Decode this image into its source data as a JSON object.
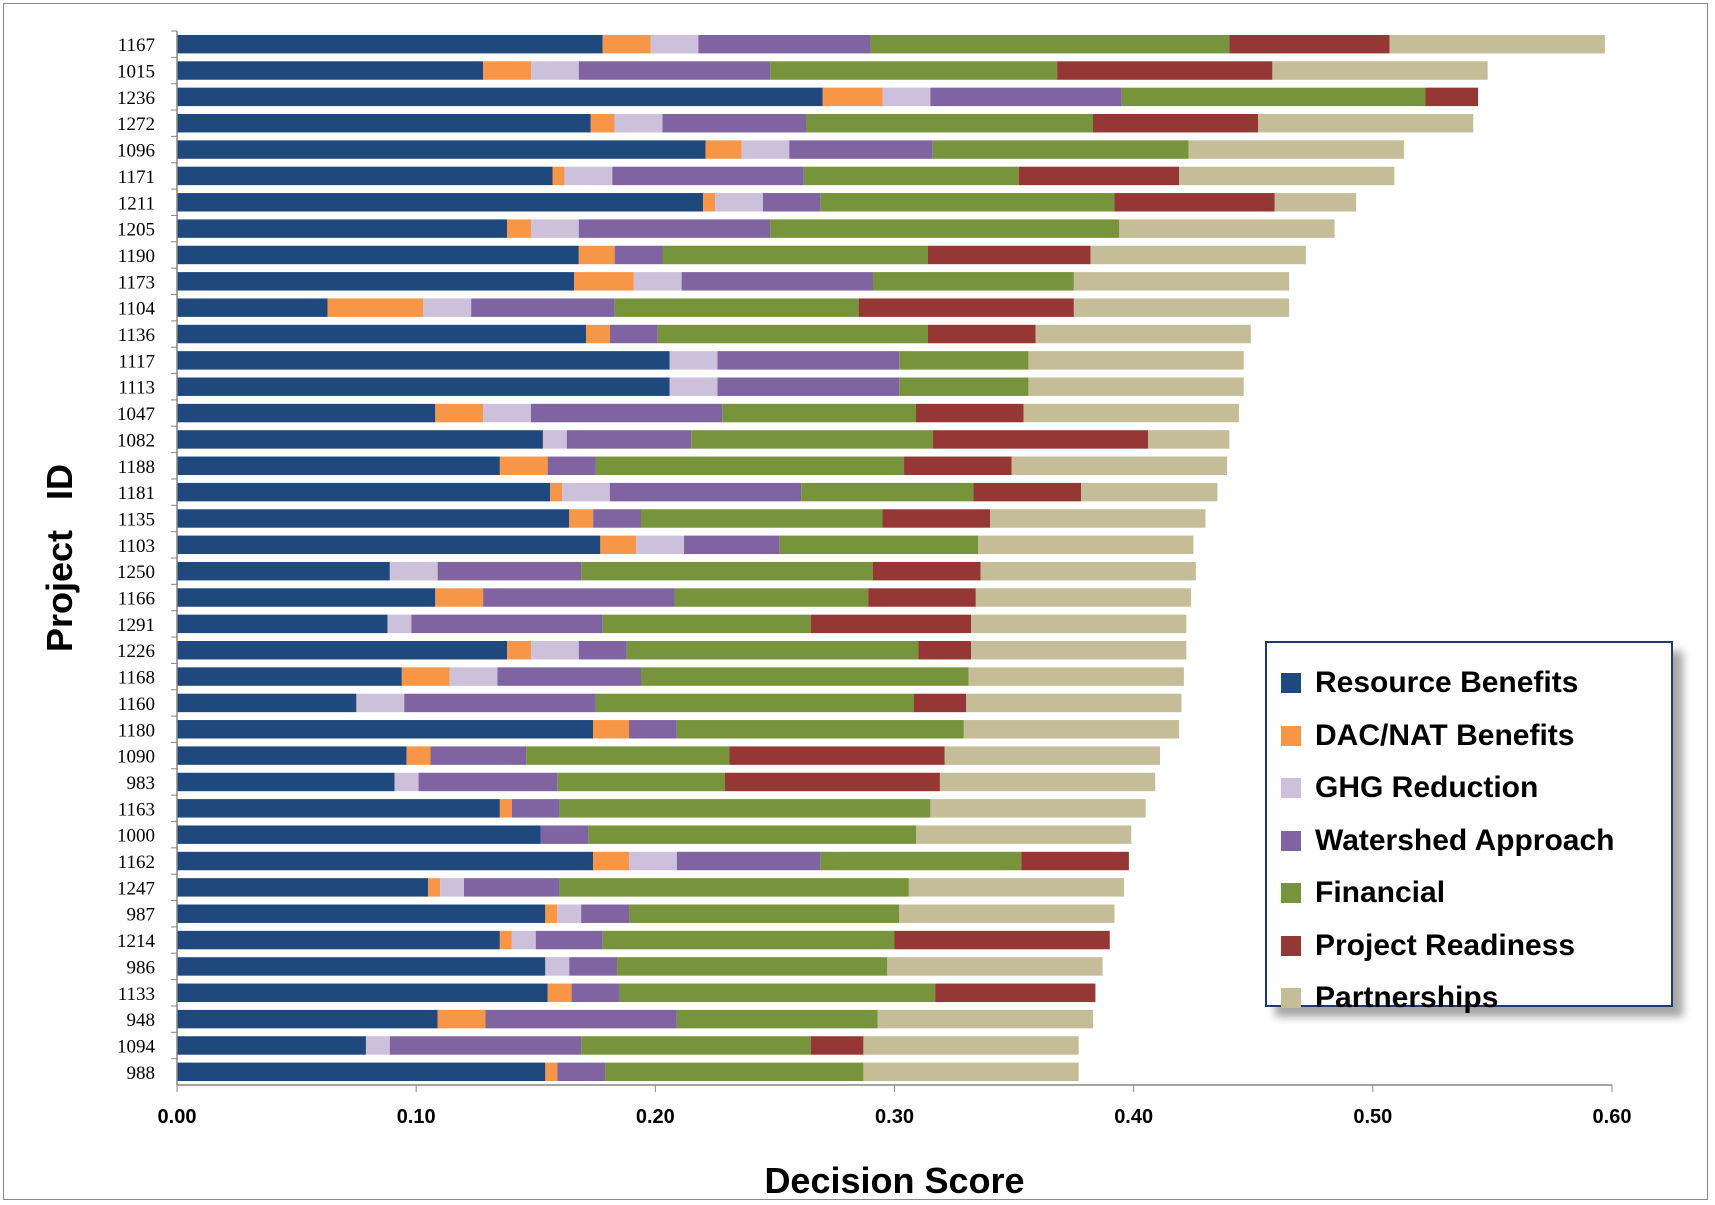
{
  "chart_data": {
    "type": "bar",
    "orientation": "horizontal",
    "stacked": true,
    "xlabel": "Decision Score",
    "ylabel": "Project   ID",
    "xlim": [
      0,
      0.6
    ],
    "xticks": [
      "0.00",
      "0.10",
      "0.20",
      "0.30",
      "0.40",
      "0.50",
      "0.60"
    ],
    "legend_position": "bottom-right",
    "grid": false,
    "categories": [
      "1167",
      "1015",
      "1236",
      "1272",
      "1096",
      "1171",
      "1211",
      "1205",
      "1190",
      "1173",
      "1104",
      "1136",
      "1117",
      "1113",
      "1047",
      "1082",
      "1188",
      "1181",
      "1135",
      "1103",
      "1250",
      "1166",
      "1291",
      "1226",
      "1168",
      "1160",
      "1180",
      "1090",
      "983",
      "1163",
      "1000",
      "1162",
      "1247",
      "987",
      "1214",
      "986",
      "1133",
      "948",
      "1094",
      "988"
    ],
    "series": [
      {
        "name": "Resource Benefits",
        "color": "#1f497d",
        "values": [
          0.178,
          0.128,
          0.27,
          0.173,
          0.221,
          0.157,
          0.22,
          0.138,
          0.168,
          0.166,
          0.063,
          0.171,
          0.206,
          0.206,
          0.108,
          0.153,
          0.135,
          0.156,
          0.164,
          0.177,
          0.089,
          0.108,
          0.088,
          0.138,
          0.094,
          0.075,
          0.174,
          0.096,
          0.091,
          0.135,
          0.152,
          0.174,
          0.105,
          0.154,
          0.135,
          0.154,
          0.155,
          0.109,
          0.079,
          0.154
        ]
      },
      {
        "name": "DAC/NAT Benefits",
        "color": "#f79646",
        "values": [
          0.02,
          0.02,
          0.025,
          0.01,
          0.015,
          0.005,
          0.005,
          0.01,
          0.015,
          0.025,
          0.04,
          0.01,
          0,
          0,
          0.02,
          0,
          0.02,
          0.005,
          0.01,
          0.015,
          0,
          0.02,
          0,
          0.01,
          0.02,
          0,
          0.015,
          0.01,
          0,
          0.005,
          0,
          0.015,
          0.005,
          0.005,
          0.005,
          0,
          0.01,
          0.02,
          0,
          0.005
        ]
      },
      {
        "name": "GHG Reduction",
        "color": "#ccc0da",
        "values": [
          0.02,
          0.02,
          0.02,
          0.02,
          0.02,
          0.02,
          0.02,
          0.02,
          0,
          0.02,
          0.02,
          0,
          0.02,
          0.02,
          0.02,
          0.01,
          0,
          0.02,
          0,
          0.02,
          0.02,
          0,
          0.01,
          0.02,
          0.02,
          0.02,
          0,
          0,
          0.01,
          0,
          0,
          0.02,
          0.01,
          0.01,
          0.01,
          0.01,
          0,
          0,
          0.01,
          0
        ]
      },
      {
        "name": "Watershed Approach",
        "color": "#8064a2",
        "values": [
          0.072,
          0.08,
          0.08,
          0.06,
          0.06,
          0.08,
          0.024,
          0.08,
          0.02,
          0.08,
          0.06,
          0.02,
          0.076,
          0.076,
          0.08,
          0.052,
          0.02,
          0.08,
          0.02,
          0.04,
          0.06,
          0.08,
          0.08,
          0.02,
          0.06,
          0.08,
          0.02,
          0.04,
          0.058,
          0.02,
          0.02,
          0.06,
          0.04,
          0.02,
          0.028,
          0.02,
          0.02,
          0.08,
          0.08,
          0.02
        ]
      },
      {
        "name": "Financial",
        "color": "#77933c",
        "values": [
          0.15,
          0.12,
          0.127,
          0.12,
          0.107,
          0.09,
          0.123,
          0.146,
          0.111,
          0.084,
          0.102,
          0.113,
          0.054,
          0.054,
          0.081,
          0.101,
          0.129,
          0.072,
          0.101,
          0.083,
          0.122,
          0.081,
          0.087,
          0.122,
          0.137,
          0.133,
          0.12,
          0.085,
          0.07,
          0.155,
          0.137,
          0.084,
          0.146,
          0.113,
          0.122,
          0.113,
          0.132,
          0.084,
          0.096,
          0.108
        ]
      },
      {
        "name": "Project Readiness",
        "color": "#953735",
        "values": [
          0.067,
          0.09,
          0.022,
          0.069,
          0,
          0.067,
          0.067,
          0,
          0.068,
          0,
          0.09,
          0.045,
          0,
          0,
          0.045,
          0.09,
          0.045,
          0.045,
          0.045,
          0,
          0.045,
          0.045,
          0.067,
          0.022,
          0,
          0.022,
          0,
          0.09,
          0.09,
          0,
          0,
          0.045,
          0,
          0,
          0.09,
          0,
          0.067,
          0,
          0.022,
          0
        ]
      },
      {
        "name": "Partnerships",
        "color": "#c4bd97",
        "values": [
          0.09,
          0.09,
          0,
          0.09,
          0.09,
          0.09,
          0.034,
          0.09,
          0.09,
          0.09,
          0.09,
          0.09,
          0.09,
          0.09,
          0.09,
          0.034,
          0.09,
          0.057,
          0.09,
          0.09,
          0.09,
          0.09,
          0.09,
          0.09,
          0.09,
          0.09,
          0.09,
          0.09,
          0.09,
          0.09,
          0.09,
          0,
          0.09,
          0.09,
          0,
          0.09,
          0,
          0.09,
          0.09,
          0.09
        ]
      }
    ]
  }
}
